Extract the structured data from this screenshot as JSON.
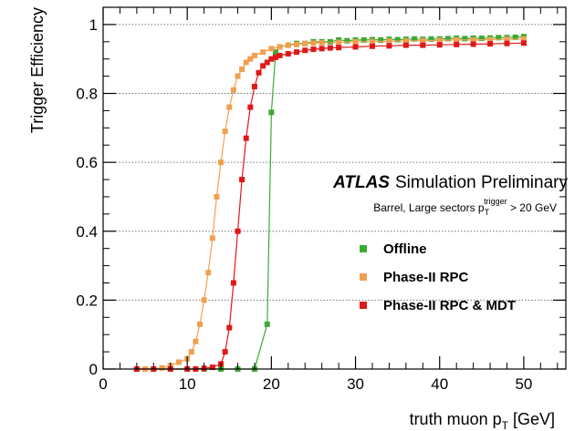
{
  "chart_data": {
    "type": "scatter",
    "xlabel": {
      "main": "truth muon p",
      "sub": "T",
      "unit": " [GeV]"
    },
    "ylabel": "Trigger Efficiency",
    "xlim": [
      0,
      55
    ],
    "ylim": [
      0,
      1.05
    ],
    "x_ticks": [
      {
        "value": 0,
        "label": "0"
      },
      {
        "value": 10,
        "label": "10"
      },
      {
        "value": 20,
        "label": "20"
      },
      {
        "value": 30,
        "label": "30"
      },
      {
        "value": 40,
        "label": "40"
      },
      {
        "value": 50,
        "label": "50"
      }
    ],
    "y_ticks": [
      {
        "value": 0,
        "label": "0"
      },
      {
        "value": 0.2,
        "label": "0.2"
      },
      {
        "value": 0.4,
        "label": "0.4"
      },
      {
        "value": 0.6,
        "label": "0.6"
      },
      {
        "value": 0.8,
        "label": "0.8"
      },
      {
        "value": 1,
        "label": "1"
      }
    ],
    "grid": "horizontal dotted",
    "annotation": {
      "atlas": "ATLAS",
      "simulation": "Simulation Preliminary",
      "selection_prefix": "Barrel, Large sectors p",
      "selection_sub": "T",
      "selection_sup": "trigger",
      "selection_suffix": " > 20 GeV"
    },
    "legend_position": "middle-right",
    "series": [
      {
        "name": "Offline",
        "color": "#3ea832",
        "points": [
          [
            4,
            0
          ],
          [
            6,
            0
          ],
          [
            8,
            0
          ],
          [
            10,
            0
          ],
          [
            12,
            0
          ],
          [
            14,
            0
          ],
          [
            16,
            0
          ],
          [
            18,
            0
          ],
          [
            19.5,
            0.13
          ],
          [
            20,
            0.745
          ],
          [
            20.5,
            0.92
          ],
          [
            21,
            0.935
          ],
          [
            22,
            0.94
          ],
          [
            23,
            0.945
          ],
          [
            24,
            0.945
          ],
          [
            25,
            0.95
          ],
          [
            26,
            0.95
          ],
          [
            27,
            0.95
          ],
          [
            28,
            0.955
          ],
          [
            29,
            0.953
          ],
          [
            30,
            0.955
          ],
          [
            31,
            0.955
          ],
          [
            32,
            0.956
          ],
          [
            33,
            0.955
          ],
          [
            34,
            0.957
          ],
          [
            35,
            0.956
          ],
          [
            36,
            0.957
          ],
          [
            37,
            0.958
          ],
          [
            38,
            0.957
          ],
          [
            39,
            0.958
          ],
          [
            40,
            0.958
          ],
          [
            41,
            0.959
          ],
          [
            42,
            0.96
          ],
          [
            43,
            0.959
          ],
          [
            44,
            0.96
          ],
          [
            45,
            0.96
          ],
          [
            46,
            0.961
          ],
          [
            47,
            0.962
          ],
          [
            48,
            0.962
          ],
          [
            49,
            0.963
          ],
          [
            50,
            0.965
          ]
        ]
      },
      {
        "name": "Phase-II RPC",
        "color": "#f0a050",
        "points": [
          [
            4,
            0
          ],
          [
            5,
            0
          ],
          [
            6,
            0
          ],
          [
            7,
            0.003
          ],
          [
            8,
            0.01
          ],
          [
            9,
            0.02
          ],
          [
            10,
            0.03
          ],
          [
            10.5,
            0.05
          ],
          [
            11,
            0.08
          ],
          [
            11.5,
            0.13
          ],
          [
            12,
            0.2
          ],
          [
            12.5,
            0.28
          ],
          [
            13,
            0.38
          ],
          [
            13.5,
            0.5
          ],
          [
            14,
            0.6
          ],
          [
            14.5,
            0.69
          ],
          [
            15,
            0.76
          ],
          [
            15.5,
            0.81
          ],
          [
            16,
            0.85
          ],
          [
            16.5,
            0.87
          ],
          [
            17,
            0.89
          ],
          [
            17.5,
            0.9
          ],
          [
            18,
            0.91
          ],
          [
            19,
            0.92
          ],
          [
            20,
            0.93
          ],
          [
            21,
            0.935
          ],
          [
            22,
            0.94
          ],
          [
            23,
            0.942
          ],
          [
            24,
            0.945
          ],
          [
            25,
            0.946
          ],
          [
            26,
            0.947
          ],
          [
            28,
            0.948
          ],
          [
            30,
            0.95
          ],
          [
            32,
            0.95
          ],
          [
            34,
            0.952
          ],
          [
            36,
            0.952
          ],
          [
            38,
            0.953
          ],
          [
            40,
            0.954
          ],
          [
            42,
            0.955
          ],
          [
            44,
            0.955
          ],
          [
            46,
            0.956
          ],
          [
            48,
            0.957
          ],
          [
            50,
            0.958
          ]
        ]
      },
      {
        "name": "Phase-II RPC & MDT",
        "color": "#e01818",
        "points": [
          [
            4,
            0
          ],
          [
            6,
            0
          ],
          [
            8,
            0
          ],
          [
            10,
            0
          ],
          [
            11,
            0
          ],
          [
            12,
            0.002
          ],
          [
            13,
            0.005
          ],
          [
            14,
            0.015
          ],
          [
            14.5,
            0.05
          ],
          [
            15,
            0.12
          ],
          [
            15.5,
            0.25
          ],
          [
            16,
            0.4
          ],
          [
            16.5,
            0.55
          ],
          [
            17,
            0.67
          ],
          [
            17.5,
            0.76
          ],
          [
            18,
            0.82
          ],
          [
            18.5,
            0.86
          ],
          [
            19,
            0.88
          ],
          [
            19.5,
            0.89
          ],
          [
            20,
            0.9
          ],
          [
            20.5,
            0.905
          ],
          [
            21,
            0.91
          ],
          [
            22,
            0.915
          ],
          [
            23,
            0.92
          ],
          [
            24,
            0.925
          ],
          [
            25,
            0.928
          ],
          [
            26,
            0.93
          ],
          [
            27,
            0.932
          ],
          [
            28,
            0.933
          ],
          [
            30,
            0.935
          ],
          [
            32,
            0.937
          ],
          [
            34,
            0.938
          ],
          [
            36,
            0.94
          ],
          [
            38,
            0.94
          ],
          [
            40,
            0.941
          ],
          [
            42,
            0.942
          ],
          [
            44,
            0.943
          ],
          [
            46,
            0.944
          ],
          [
            48,
            0.945
          ],
          [
            50,
            0.946
          ]
        ]
      }
    ]
  }
}
